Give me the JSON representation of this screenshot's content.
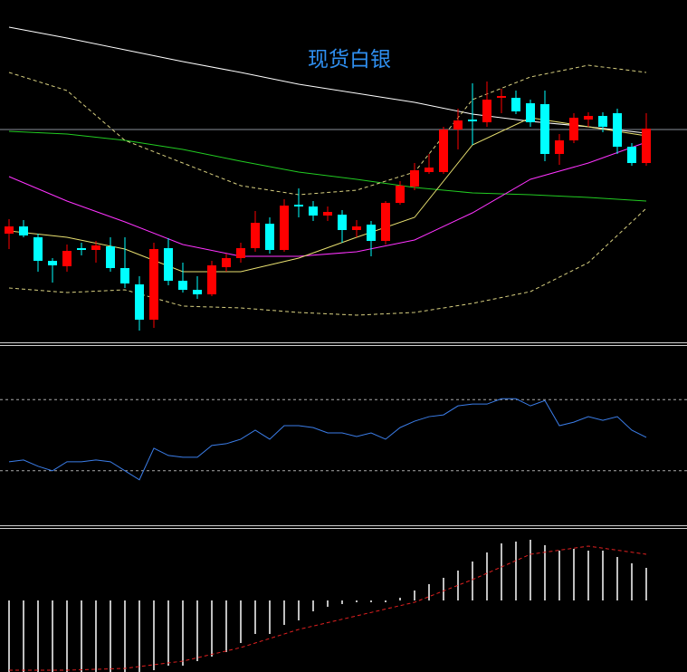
{
  "chart_data": [
    {
      "type": "candlestick",
      "title": "现货白银",
      "title_color": "#2f8ff0",
      "ylim": [
        0,
        380
      ],
      "up_color": "#ff0000",
      "down_color": "#00ffff",
      "open": [
        122,
        130,
        118,
        92,
        86,
        106,
        104,
        108,
        84,
        66,
        27,
        106,
        70,
        60,
        55,
        85,
        95,
        106,
        133,
        104,
        154,
        152,
        142,
        143,
        126,
        132,
        114,
        156,
        174,
        190,
        190,
        237,
        248,
        245,
        272,
        272,
        266,
        265,
        210,
        225,
        248,
        252,
        255,
        218,
        200
      ],
      "high": [
        138,
        137,
        122,
        95,
        110,
        112,
        114,
        118,
        118,
        75,
        112,
        117,
        90,
        75,
        92,
        100,
        112,
        147,
        140,
        160,
        172,
        158,
        152,
        148,
        137,
        136,
        158,
        180,
        200,
        210,
        240,
        260,
        288,
        290,
        282,
        280,
        270,
        280,
        232,
        255,
        256,
        256,
        260,
        222,
        255
      ],
      "low": [
        105,
        118,
        80,
        68,
        80,
        98,
        90,
        80,
        62,
        15,
        18,
        65,
        57,
        50,
        53,
        80,
        90,
        102,
        100,
        102,
        140,
        136,
        136,
        112,
        118,
        97,
        110,
        154,
        170,
        188,
        188,
        215,
        220,
        240,
        255,
        254,
        240,
        202,
        198,
        222,
        240,
        234,
        210,
        197,
        197
      ],
      "close": [
        130,
        120,
        92,
        87,
        103,
        104,
        109,
        84,
        67,
        27,
        105,
        70,
        60,
        55,
        87,
        95,
        106,
        134,
        104,
        153,
        152,
        142,
        146,
        126,
        130,
        114,
        156,
        175,
        192,
        195,
        237,
        247,
        246,
        270,
        274,
        257,
        245,
        210,
        225,
        250,
        252,
        240,
        218,
        200,
        238
      ],
      "hlines": [
        237
      ],
      "hline_color": "#8a8f9a",
      "series": [
        {
          "color": "#ffffff",
          "dashed": false,
          "x": [
            0,
            4,
            8,
            12,
            16,
            20,
            24,
            28,
            32,
            36,
            40,
            44
          ],
          "values": [
            350,
            338,
            325,
            312,
            300,
            287,
            277,
            267,
            254,
            246,
            240,
            233
          ]
        },
        {
          "color": "#22cc22",
          "dashed": false,
          "x": [
            0,
            4,
            8,
            12,
            16,
            20,
            24,
            28,
            32,
            36,
            40,
            44
          ],
          "values": [
            235,
            232,
            225,
            215,
            202,
            190,
            182,
            173,
            167,
            165,
            162,
            158
          ]
        },
        {
          "color": "#ff33ff",
          "dashed": false,
          "x": [
            0,
            4,
            8,
            12,
            16,
            20,
            24,
            28,
            32,
            36,
            40,
            44
          ],
          "values": [
            185,
            158,
            135,
            110,
            97,
            97,
            102,
            115,
            145,
            182,
            200,
            223
          ]
        },
        {
          "color": "#e8e070",
          "dashed": false,
          "x": [
            0,
            4,
            8,
            12,
            16,
            20,
            24,
            28,
            32,
            36,
            40,
            44
          ],
          "values": [
            125,
            118,
            105,
            80,
            80,
            95,
            118,
            140,
            220,
            250,
            240,
            230
          ]
        },
        {
          "color": "#d8d080",
          "dashed": true,
          "x": [
            0,
            4,
            8,
            12,
            16,
            20,
            24,
            28,
            32,
            36,
            40,
            44
          ],
          "values": [
            300,
            280,
            225,
            200,
            175,
            165,
            170,
            190,
            270,
            295,
            308,
            300
          ]
        },
        {
          "color": "#d8d080",
          "dashed": true,
          "x": [
            0,
            4,
            8,
            12,
            16,
            20,
            24,
            28,
            32,
            36,
            40,
            44
          ],
          "values": [
            62,
            57,
            60,
            42,
            40,
            35,
            32,
            35,
            45,
            58,
            90,
            150
          ]
        }
      ]
    },
    {
      "type": "line",
      "ylim": [
        0,
        100
      ],
      "hlines": [
        80,
        20
      ],
      "hline_color": "#aaaaaa",
      "series": [
        {
          "color": "#3b7de8",
          "dashed": false,
          "x": [
            0,
            1,
            2,
            3,
            4,
            5,
            6,
            7,
            8,
            9,
            10,
            11,
            12,
            13,
            14,
            15,
            16,
            17,
            18,
            19,
            20,
            21,
            22,
            23,
            24,
            25,
            26,
            27,
            28,
            29,
            30,
            31,
            32,
            33,
            34,
            35,
            36,
            37,
            38,
            39,
            40,
            41,
            42,
            43,
            44
          ],
          "values": [
            27.6,
            29.1,
            23.8,
            20,
            27.6,
            27.6,
            29.1,
            27.6,
            20,
            12.4,
            39,
            32.9,
            31.4,
            31.4,
            41.3,
            42.8,
            46.6,
            54.2,
            46.6,
            58,
            58,
            56.4,
            51.9,
            51.9,
            48.9,
            51.9,
            46.6,
            56.4,
            61.8,
            65.6,
            67.1,
            74.7,
            76.2,
            76.2,
            80.7,
            80.7,
            74.7,
            79.2,
            58,
            61,
            65.6,
            62.5,
            65.6,
            54.2,
            48.1
          ]
        }
      ]
    },
    {
      "type": "macd",
      "ylim": [
        -80,
        80
      ],
      "bar_color": "#ffffff",
      "values": [
        -80,
        -80,
        -80,
        -80,
        -80,
        -80,
        -80,
        -80,
        -80,
        -80,
        -77,
        -72,
        -72,
        -67,
        -62,
        -57,
        -47,
        -37,
        -37,
        -27,
        -22,
        -12,
        -7,
        -4,
        -2,
        -2,
        -2,
        3,
        11,
        18,
        25,
        33,
        43,
        53,
        63,
        65,
        67,
        61,
        55,
        57,
        55,
        55,
        48,
        41,
        36
      ],
      "series": [
        {
          "color": "#e02020",
          "dashed": true,
          "x": [
            0,
            4,
            8,
            12,
            16,
            20,
            24,
            28,
            32,
            36,
            40,
            44
          ],
          "values": [
            -77,
            -77,
            -75,
            -67,
            -52,
            -32,
            -17,
            -2,
            23,
            51,
            60,
            51
          ]
        }
      ]
    }
  ]
}
